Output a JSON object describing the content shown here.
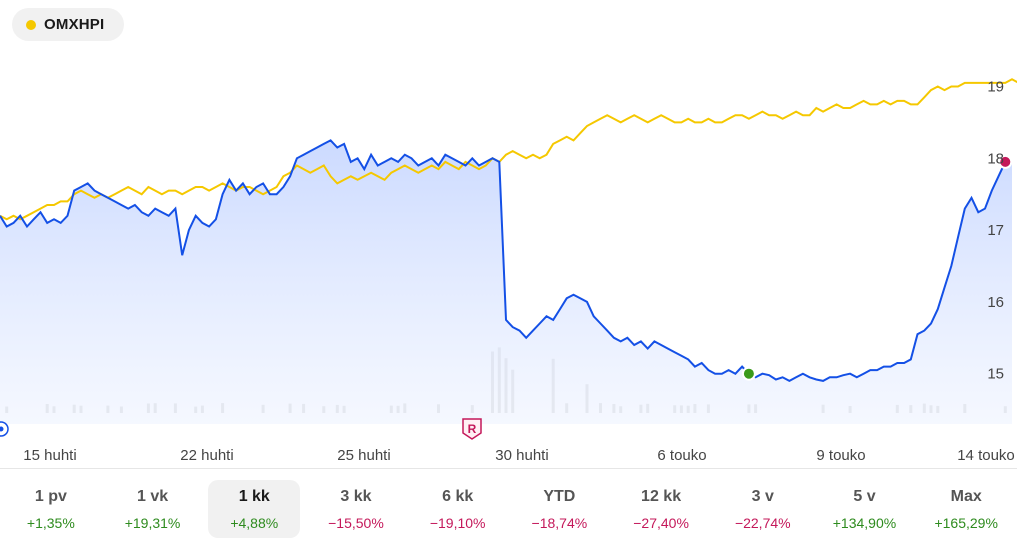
{
  "legend": {
    "label": "OMXHPI",
    "color": "#f5c800"
  },
  "colors": {
    "primary_line": "#1450e6",
    "primary_fill_top": "#c9d8ff",
    "index_line": "#f5c800",
    "volume": "#d8d8d8",
    "positive": "#2e8b1e",
    "negative": "#c4185a",
    "marker_green": "#3a9a1a",
    "marker_red": "#c4185a"
  },
  "chart_data": {
    "type": "line",
    "ylim": [
      14.3,
      19.55
    ],
    "y_ticks": [
      "15",
      "16",
      "17",
      "18",
      "19"
    ],
    "x_tick_labels": [
      "15 huhti",
      "22 huhti",
      "25 huhti",
      "30 huhti",
      "6 touko",
      "9 touko",
      "14 touko"
    ],
    "series": [
      {
        "role": "stock",
        "values": [
          17.2,
          17.05,
          17.1,
          17.2,
          17.05,
          17.15,
          17.25,
          17.1,
          17.15,
          17.1,
          17.2,
          17.55,
          17.6,
          17.65,
          17.55,
          17.5,
          17.45,
          17.4,
          17.35,
          17.3,
          17.35,
          17.25,
          17.2,
          17.3,
          17.25,
          17.2,
          17.3,
          16.65,
          17.0,
          17.2,
          17.1,
          17.05,
          17.15,
          17.5,
          17.7,
          17.55,
          17.65,
          17.5,
          17.6,
          17.65,
          17.5,
          17.5,
          17.6,
          17.75,
          18.0,
          18.05,
          18.1,
          18.15,
          18.2,
          18.25,
          18.15,
          18.2,
          17.95,
          18.0,
          17.85,
          18.05,
          17.9,
          17.95,
          18.0,
          17.95,
          18.05,
          18.0,
          17.9,
          17.95,
          18.0,
          17.9,
          18.05,
          18.0,
          17.95,
          17.9,
          18.0,
          17.9,
          17.95,
          18.0,
          17.95,
          15.75,
          15.65,
          15.6,
          15.5,
          15.6,
          15.7,
          15.8,
          15.75,
          15.9,
          16.05,
          16.1,
          16.05,
          16.0,
          15.8,
          15.7,
          15.6,
          15.5,
          15.45,
          15.5,
          15.4,
          15.45,
          15.35,
          15.45,
          15.4,
          15.35,
          15.3,
          15.25,
          15.2,
          15.1,
          15.15,
          15.05,
          15.0,
          15.0,
          15.05,
          15.0,
          15.1,
          15.0,
          14.95,
          15.0,
          14.98,
          14.92,
          14.95,
          14.9,
          14.95,
          15.0,
          14.95,
          14.92,
          14.9,
          14.95,
          14.95,
          14.98,
          15.0,
          14.95,
          15.0,
          15.05,
          15.05,
          15.1,
          15.1,
          15.15,
          15.15,
          15.2,
          15.55,
          15.6,
          15.7,
          15.9,
          16.2,
          16.5,
          16.9,
          17.3,
          17.45,
          17.25,
          17.3,
          17.55,
          17.75,
          17.95,
          17.95
        ],
        "markers": [
          {
            "index": 111,
            "color": "#3a9a1a"
          },
          {
            "index": 149,
            "color": "#c4185a"
          }
        ]
      },
      {
        "role": "index",
        "values": [
          17.2,
          17.15,
          17.2,
          17.15,
          17.2,
          17.25,
          17.3,
          17.35,
          17.35,
          17.4,
          17.4,
          17.5,
          17.55,
          17.5,
          17.45,
          17.5,
          17.45,
          17.5,
          17.55,
          17.6,
          17.55,
          17.5,
          17.6,
          17.55,
          17.5,
          17.55,
          17.55,
          17.5,
          17.55,
          17.6,
          17.6,
          17.55,
          17.6,
          17.65,
          17.6,
          17.55,
          17.6,
          17.6,
          17.55,
          17.5,
          17.55,
          17.6,
          17.75,
          17.8,
          17.9,
          17.85,
          17.8,
          17.85,
          17.9,
          17.75,
          17.65,
          17.7,
          17.75,
          17.7,
          17.75,
          17.8,
          17.75,
          17.7,
          17.8,
          17.85,
          17.9,
          17.85,
          17.8,
          17.85,
          17.9,
          17.85,
          17.95,
          17.9,
          17.85,
          17.95,
          17.9,
          17.85,
          17.9,
          18.0,
          17.95,
          18.05,
          18.1,
          18.05,
          18.0,
          18.05,
          18.0,
          18.05,
          18.2,
          18.25,
          18.3,
          18.25,
          18.35,
          18.45,
          18.5,
          18.55,
          18.6,
          18.55,
          18.5,
          18.55,
          18.6,
          18.55,
          18.5,
          18.55,
          18.6,
          18.55,
          18.5,
          18.5,
          18.55,
          18.5,
          18.5,
          18.55,
          18.5,
          18.5,
          18.55,
          18.6,
          18.6,
          18.55,
          18.6,
          18.65,
          18.6,
          18.6,
          18.55,
          18.6,
          18.65,
          18.6,
          18.6,
          18.7,
          18.65,
          18.7,
          18.75,
          18.7,
          18.7,
          18.75,
          18.8,
          18.75,
          18.75,
          18.8,
          18.75,
          18.8,
          18.8,
          18.75,
          18.75,
          18.85,
          18.95,
          19.0,
          18.95,
          19.0,
          19.0,
          19.05,
          19.05,
          19.05,
          19.05,
          19.05,
          19.05,
          19.05,
          19.1,
          19.05
        ]
      }
    ],
    "volume": [
      0,
      0,
      0,
      0,
      0,
      0,
      0,
      0,
      0,
      0,
      0,
      0,
      0,
      0,
      0,
      0,
      0,
      0,
      0,
      0,
      0,
      0,
      0,
      0,
      0,
      0,
      0,
      0,
      0,
      0,
      0,
      0,
      0,
      0,
      0,
      0,
      0,
      0,
      0,
      0,
      0,
      0,
      0,
      0,
      0,
      0,
      0,
      0,
      0,
      0,
      0,
      0,
      0,
      0,
      0,
      0,
      0,
      0,
      0,
      0,
      0,
      0,
      0,
      0,
      0,
      0,
      0,
      0,
      0,
      0,
      0,
      0,
      0,
      0,
      0,
      0,
      0,
      0,
      0,
      0,
      0,
      0,
      0,
      0,
      0,
      0,
      0,
      0,
      0,
      0,
      0,
      0,
      0,
      0,
      0,
      0,
      0,
      0,
      0,
      0,
      0,
      0,
      0,
      0,
      0,
      0,
      0,
      0,
      0,
      0,
      0,
      0,
      0,
      0,
      0,
      0,
      0,
      0,
      0,
      0,
      0,
      0,
      0,
      0,
      0,
      0,
      0,
      0,
      0,
      0,
      0,
      0,
      0,
      0,
      0,
      0,
      0,
      0,
      0,
      0,
      0,
      0,
      0,
      0,
      0,
      0,
      0,
      0,
      0,
      0,
      0,
      0,
      0,
      0,
      0,
      0
    ]
  },
  "event_marker": {
    "label": "R"
  },
  "periods": [
    {
      "label": "1 pv",
      "change": "+1,35%",
      "positive": true,
      "active": false
    },
    {
      "label": "1 vk",
      "change": "+19,31%",
      "positive": true,
      "active": false
    },
    {
      "label": "1 kk",
      "change": "+4,88%",
      "positive": true,
      "active": true
    },
    {
      "label": "3 kk",
      "change": "−15,50%",
      "positive": false,
      "active": false
    },
    {
      "label": "6 kk",
      "change": "−19,10%",
      "positive": false,
      "active": false
    },
    {
      "label": "YTD",
      "change": "−18,74%",
      "positive": false,
      "active": false
    },
    {
      "label": "12 kk",
      "change": "−27,40%",
      "positive": false,
      "active": false
    },
    {
      "label": "3 v",
      "change": "−22,74%",
      "positive": false,
      "active": false
    },
    {
      "label": "5 v",
      "change": "+134,90%",
      "positive": true,
      "active": false
    },
    {
      "label": "Max",
      "change": "+165,29%",
      "positive": true,
      "active": false
    }
  ]
}
